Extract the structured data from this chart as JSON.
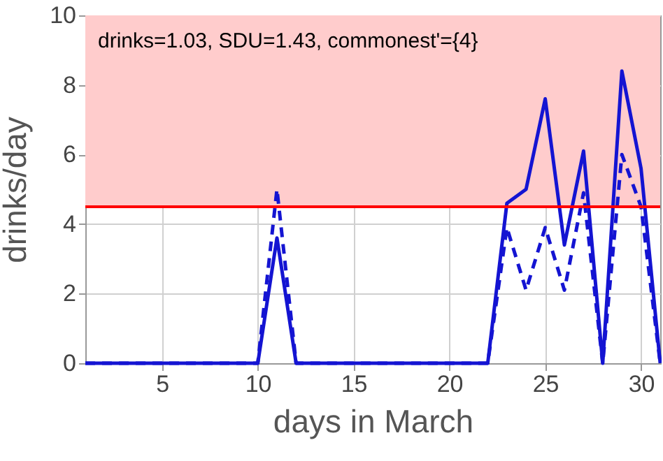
{
  "chart_data": {
    "type": "line",
    "xlabel": "days in March",
    "ylabel": "drinks/day",
    "x": [
      1,
      2,
      3,
      4,
      5,
      6,
      7,
      8,
      9,
      10,
      11,
      12,
      13,
      14,
      15,
      16,
      17,
      18,
      19,
      20,
      21,
      22,
      23,
      24,
      25,
      26,
      27,
      28,
      29,
      30,
      31
    ],
    "series": [
      {
        "color": "#1414d2",
        "line_style": "solid",
        "values": [
          0,
          0,
          0,
          0,
          0,
          0,
          0,
          0,
          0,
          0,
          3.6,
          0,
          0,
          0,
          0,
          0,
          0,
          0,
          0,
          0,
          0,
          0,
          4.6,
          5.0,
          7.6,
          3.4,
          6.1,
          0,
          8.4,
          5.6,
          0
        ]
      },
      {
        "color": "#1414d2",
        "line_style": "dashed",
        "values": [
          0,
          0,
          0,
          0,
          0,
          0,
          0,
          0,
          0,
          0,
          5.0,
          0,
          0,
          0,
          0,
          0,
          0,
          0,
          0,
          0,
          0,
          0,
          3.9,
          2.1,
          3.9,
          2.1,
          4.9,
          0,
          6.0,
          4.5,
          0
        ]
      }
    ],
    "xlim": [
      1,
      31
    ],
    "xticks": [
      5,
      10,
      15,
      20,
      25,
      30
    ],
    "ylim": [
      0,
      10
    ],
    "yticks": [
      0,
      2,
      4,
      6,
      8,
      10
    ],
    "grid": true,
    "bands": [
      {
        "axis": "y",
        "from": 4.5,
        "to": 10,
        "color": "#ffcccc"
      }
    ],
    "ref_lines": [
      {
        "axis": "y",
        "value": 4.5,
        "color": "#ff0000"
      }
    ],
    "annotations": [
      "drinks=1.03, SDU=1.43, commonest'={4}"
    ]
  }
}
